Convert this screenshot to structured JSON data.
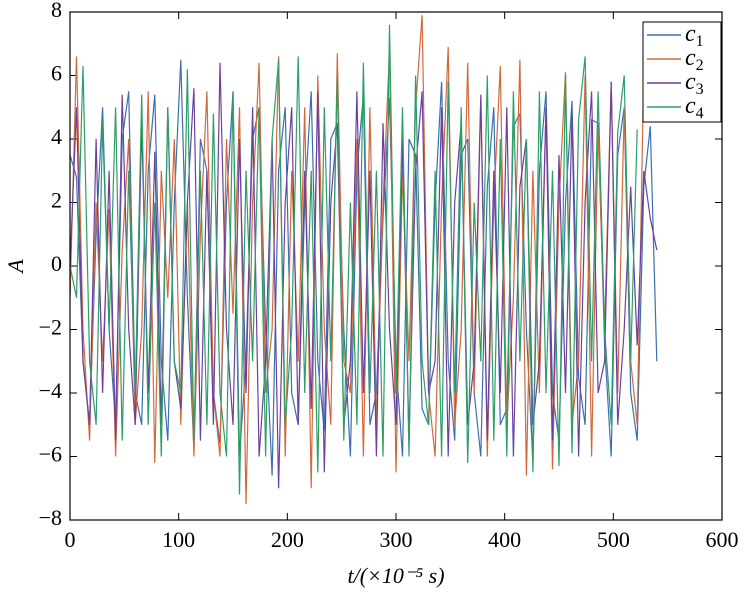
{
  "chart_data": {
    "type": "line",
    "xlabel": "t/(×10⁻⁵ s)",
    "ylabel": "A",
    "xlim": [
      0,
      600
    ],
    "xticks": [
      0,
      100,
      200,
      300,
      400,
      500,
      600
    ],
    "ylim": [
      -8,
      8
    ],
    "yticks": [
      {
        "value": -8,
        "label": "−8"
      },
      {
        "value": -6,
        "label": "−6"
      },
      {
        "value": -4,
        "label": "−4"
      },
      {
        "value": -2,
        "label": "−2"
      },
      0,
      2,
      4,
      6,
      8
    ],
    "legend": "upper right",
    "x": [
      0,
      6,
      12,
      18,
      24,
      30,
      36,
      42,
      48,
      54,
      60,
      66,
      72,
      78,
      84,
      90,
      96,
      102,
      108,
      114,
      120,
      126,
      132,
      138,
      144,
      150,
      156,
      162,
      168,
      174,
      180,
      186,
      192,
      198,
      204,
      210,
      216,
      222,
      228,
      234,
      240,
      246,
      252,
      258,
      264,
      270,
      276,
      282,
      288,
      294,
      300,
      306,
      312,
      318,
      324,
      330,
      336,
      342,
      348,
      354,
      360,
      366,
      372,
      378,
      384,
      390,
      396,
      402,
      408,
      414,
      420,
      426,
      432,
      438,
      444,
      450,
      456,
      462,
      468,
      474,
      480,
      486,
      492,
      498,
      504,
      510,
      516,
      522,
      528,
      534,
      540
    ],
    "series": [
      {
        "name": "c1",
        "color": "#3b6fae",
        "values": [
          3.5,
          2.8,
          -3,
          -5,
          1,
          5,
          -2,
          -5,
          4,
          5.5,
          -4,
          -5,
          3,
          5.4,
          -3,
          -5.5,
          2,
          6.5,
          -1,
          -5.8,
          4,
          3,
          -4,
          -5.6,
          2,
          5.5,
          -6,
          -3,
          4,
          5,
          -2,
          -6.6,
          3,
          5,
          -4,
          -5,
          2,
          5.5,
          -3,
          -5.2,
          4,
          4.5,
          -2,
          -6,
          3,
          5.4,
          -5,
          -4,
          1.5,
          5.3,
          -3,
          -6,
          4,
          3.5,
          -4.5,
          -5,
          2,
          5.8,
          -3,
          -5.5,
          3.5,
          4,
          -4,
          -6,
          2.5,
          5,
          -5,
          -4.5,
          4.4,
          4.8,
          -2,
          -6.2,
          3,
          5.5,
          -4,
          -5.5,
          2,
          5.2,
          -3.5,
          -5,
          4.6,
          4.5,
          -2.5,
          -6,
          3.5,
          5,
          -4,
          -5.5,
          2.5,
          4.4,
          -3
        ]
      },
      {
        "name": "c2",
        "color": "#d2693c",
        "values": [
          -1,
          6.6,
          -2,
          -5.5,
          2,
          -3,
          1.8,
          -6,
          0.5,
          4,
          -5,
          -2,
          5.5,
          -6.2,
          3,
          -1,
          4,
          -5,
          2,
          -6,
          1,
          5.5,
          -4,
          -6,
          4,
          -1.5,
          5,
          -7.5,
          2,
          6.4,
          -4,
          -2,
          6.6,
          -6,
          3,
          -3,
          5,
          -7,
          6,
          -2,
          -5,
          6.7,
          -3,
          -4,
          4,
          -6,
          5,
          -5,
          2,
          6.8,
          -6.5,
          3,
          -3,
          5,
          7.9,
          -4,
          -6,
          2,
          6.9,
          -5,
          -2,
          6.4,
          -4,
          5.3,
          -6,
          2,
          6.3,
          -5,
          -1,
          6.5,
          -6.6,
          3,
          -4,
          5,
          -6.4,
          2,
          6.1,
          -5,
          -3,
          6,
          -6,
          4.3,
          -2,
          5.8,
          -4,
          5,
          -3,
          -5,
          6.2,
          null,
          null
        ]
      },
      {
        "name": "c3",
        "color": "#6a41a0",
        "values": [
          0,
          5,
          -3,
          -5,
          4,
          -4,
          3,
          -5.5,
          5.4,
          -2,
          -5,
          4.5,
          -4,
          3.6,
          -5,
          5,
          -3,
          -4.5,
          2,
          5.6,
          -5.5,
          3,
          -5,
          6.4,
          -2,
          -5,
          4,
          -4,
          5,
          -6,
          -3,
          4,
          -7,
          2,
          5,
          -5,
          3,
          -4.5,
          5.5,
          -6.5,
          2,
          4.5,
          -5,
          -3,
          5.5,
          -4,
          3,
          -6,
          4.5,
          -2,
          -5,
          4,
          -5.5,
          3,
          5.5,
          -4,
          -3,
          5,
          -6,
          2,
          4.5,
          -5,
          -3,
          5.4,
          -5.5,
          3,
          -4,
          5,
          -6,
          2.5,
          4,
          -5,
          -3,
          5,
          -5.5,
          3.5,
          -4,
          4.8,
          -6,
          2,
          5.5,
          -4,
          -3,
          5.8,
          -5,
          -2,
          2.5,
          -2.5,
          3,
          1.5,
          0.5
        ]
      },
      {
        "name": "c4",
        "color": "#2e9e68",
        "values": [
          0,
          -1,
          6.3,
          -3,
          -5,
          4.5,
          -2,
          5,
          -5.5,
          3,
          -4,
          5.4,
          -5,
          2,
          -6,
          5,
          -3,
          -4,
          6.2,
          -5.5,
          3,
          -5,
          4.8,
          -4,
          -6,
          5.5,
          -7.2,
          3,
          -3,
          5,
          -6,
          4,
          6.5,
          -5,
          -2,
          6.6,
          -4,
          3,
          -6.5,
          5,
          -3,
          6,
          -5.5,
          2,
          -5,
          6.4,
          -4,
          3,
          -6,
          7.6,
          -4,
          5,
          -6,
          6,
          -3,
          -5,
          3,
          -6,
          5.8,
          -4,
          5,
          -6.2,
          2,
          -3,
          6,
          -5.5,
          4,
          -6,
          5.5,
          -3,
          4,
          -6.5,
          5.5,
          -4,
          3,
          -6.3,
          6,
          -5.9,
          4.6,
          6.6,
          -3,
          5.5,
          -2,
          -5,
          4.2,
          6,
          -3,
          4.3,
          null,
          null,
          null
        ]
      }
    ]
  }
}
